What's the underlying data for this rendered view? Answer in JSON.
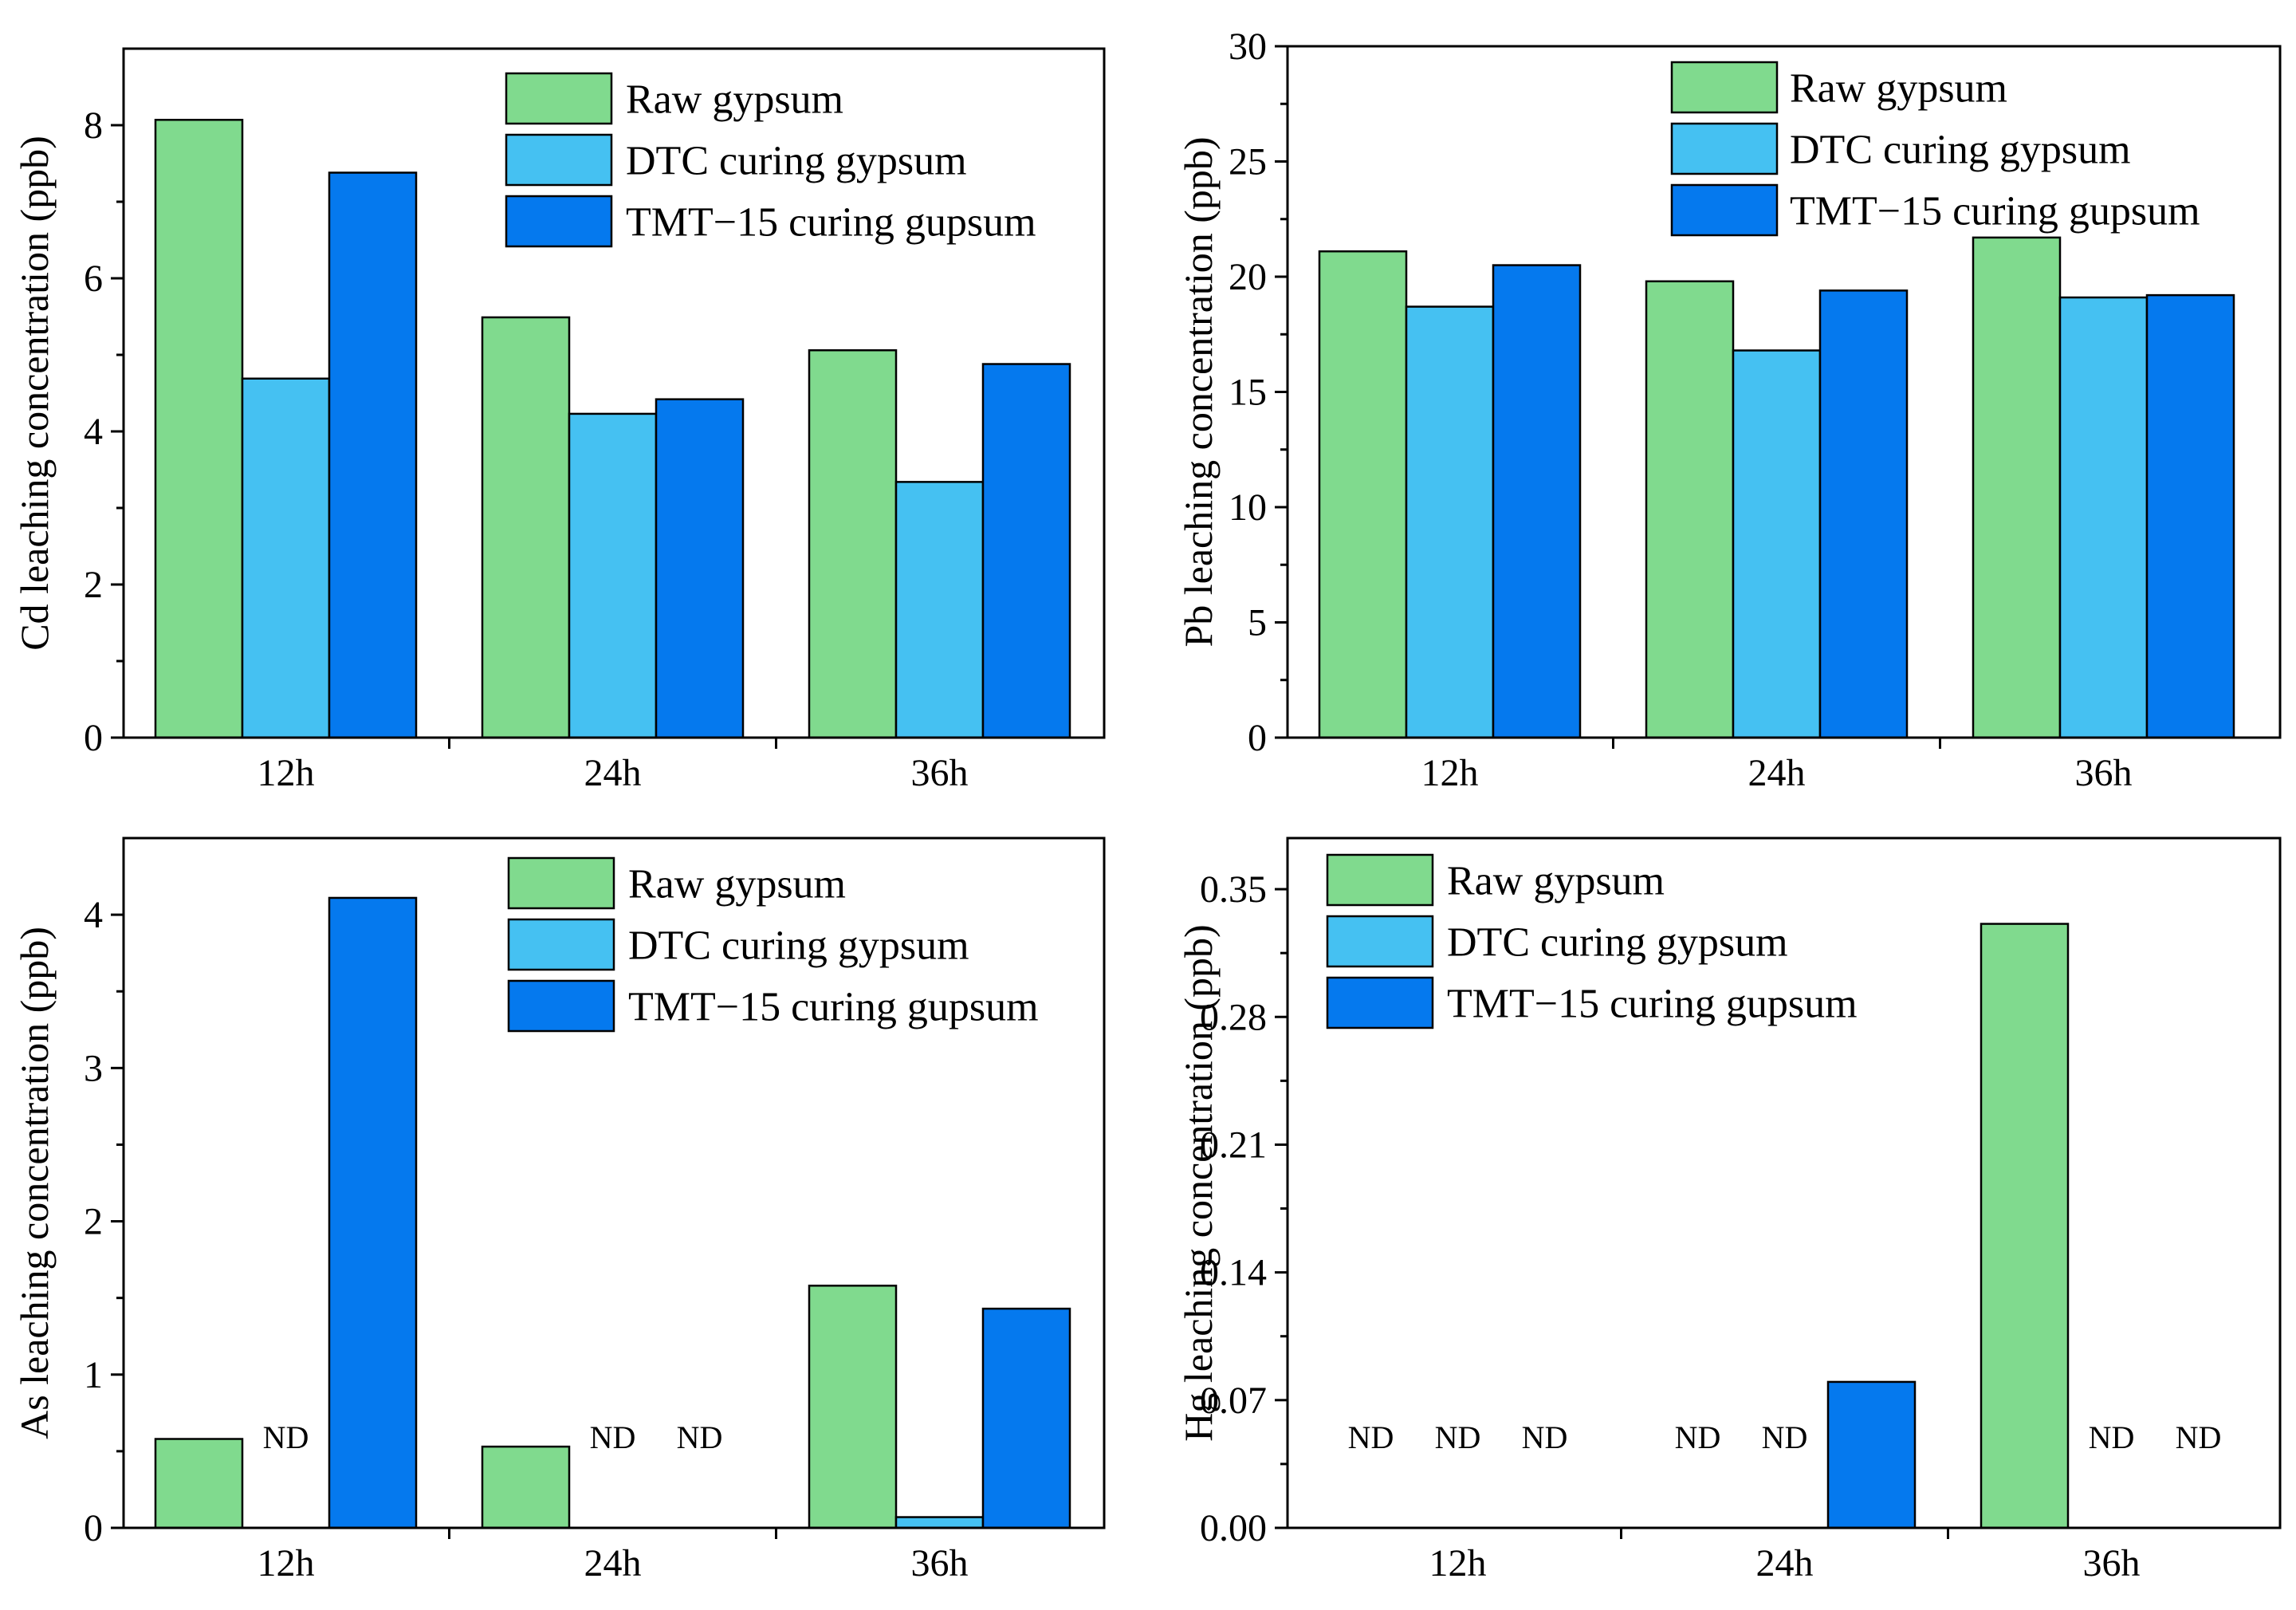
{
  "colors": {
    "raw": "#80da8e",
    "dtc": "#45c1f2",
    "tmt": "#0579ee"
  },
  "chart_data": [
    {
      "type": "bar",
      "categories": [
        "12h",
        "24h",
        "36h"
      ],
      "ylabel": "Cd leaching concentration (ppb)",
      "xlabel": "",
      "ylim": [
        0,
        9
      ],
      "yticks": [
        0,
        2,
        4,
        6,
        8
      ],
      "ytick_labels": [
        "0",
        "2",
        "4",
        "6",
        "8"
      ],
      "minor_ticks": [
        1,
        3,
        5,
        7
      ],
      "legend_position": "top-right",
      "series": [
        {
          "name": "Raw gypsum",
          "color_key": "raw",
          "values": [
            8.07,
            5.49,
            5.06
          ],
          "labels": [
            null,
            null,
            null
          ]
        },
        {
          "name": "DTC curing gypsum",
          "color_key": "dtc",
          "values": [
            4.69,
            4.23,
            3.34
          ],
          "labels": [
            null,
            null,
            null
          ]
        },
        {
          "name": "TMT−15 curing gupsum",
          "color_key": "tmt",
          "values": [
            7.38,
            4.42,
            4.88
          ],
          "labels": [
            null,
            null,
            null
          ]
        }
      ]
    },
    {
      "type": "bar",
      "categories": [
        "12h",
        "24h",
        "36h"
      ],
      "ylabel": "Pb leaching concentration (ppb)",
      "xlabel": "",
      "ylim": [
        0,
        30
      ],
      "yticks": [
        0,
        5,
        10,
        15,
        20,
        25,
        30
      ],
      "ytick_labels": [
        "0",
        "5",
        "10",
        "15",
        "20",
        "25",
        "30"
      ],
      "minor_ticks": [
        2.5,
        7.5,
        12.5,
        17.5,
        22.5,
        27.5
      ],
      "legend_position": "top-right",
      "series": [
        {
          "name": "Raw gypsum",
          "color_key": "raw",
          "values": [
            21.1,
            19.8,
            21.7
          ],
          "labels": [
            null,
            null,
            null
          ]
        },
        {
          "name": "DTC curing gypsum",
          "color_key": "dtc",
          "values": [
            18.7,
            16.8,
            19.1
          ],
          "labels": [
            null,
            null,
            null
          ]
        },
        {
          "name": "TMT−15 curing gupsum",
          "color_key": "tmt",
          "values": [
            20.5,
            19.4,
            19.2
          ],
          "labels": [
            null,
            null,
            null
          ]
        }
      ]
    },
    {
      "type": "bar",
      "categories": [
        "12h",
        "24h",
        "36h"
      ],
      "ylabel": "As leaching concentration (ppb)",
      "xlabel": "",
      "ylim": [
        0,
        4.5
      ],
      "yticks": [
        0,
        1,
        2,
        3,
        4
      ],
      "ytick_labels": [
        "0",
        "1",
        "2",
        "3",
        "4"
      ],
      "minor_ticks": [
        0.5,
        1.5,
        2.5,
        3.5
      ],
      "legend_position": "top-right",
      "series": [
        {
          "name": "Raw gypsum",
          "color_key": "raw",
          "values": [
            0.58,
            0.53,
            1.58
          ],
          "labels": [
            null,
            null,
            null
          ]
        },
        {
          "name": "DTC curing gypsum",
          "color_key": "dtc",
          "values": [
            0,
            0,
            0.07
          ],
          "labels": [
            "ND",
            "ND",
            null
          ]
        },
        {
          "name": "TMT−15 curing gupsum",
          "color_key": "tmt",
          "values": [
            4.11,
            0,
            1.43
          ],
          "labels": [
            null,
            "ND",
            null
          ]
        }
      ]
    },
    {
      "type": "bar",
      "categories": [
        "12h",
        "24h",
        "36h"
      ],
      "ylabel": "Hg leaching concentration (ppb)",
      "xlabel": "",
      "ylim": [
        0,
        0.378
      ],
      "yticks": [
        0,
        0.07,
        0.14,
        0.21,
        0.28,
        0.35
      ],
      "ytick_labels": [
        "0.00",
        "0.07",
        "0.14",
        "0.21",
        "0.28",
        "0.35"
      ],
      "minor_ticks": [
        0.035,
        0.105,
        0.175,
        0.245,
        0.315
      ],
      "legend_position": "top-left",
      "series": [
        {
          "name": "Raw gypsum",
          "color_key": "raw",
          "values": [
            0,
            0,
            0.331
          ],
          "labels": [
            "ND",
            "ND",
            null
          ]
        },
        {
          "name": "DTC curing gypsum",
          "color_key": "dtc",
          "values": [
            0,
            0,
            0
          ],
          "labels": [
            "ND",
            "ND",
            "ND"
          ]
        },
        {
          "name": "TMT−15 curing gupsum",
          "color_key": "tmt",
          "values": [
            0,
            0.08,
            0
          ],
          "labels": [
            "ND",
            null,
            "ND"
          ]
        }
      ]
    }
  ]
}
